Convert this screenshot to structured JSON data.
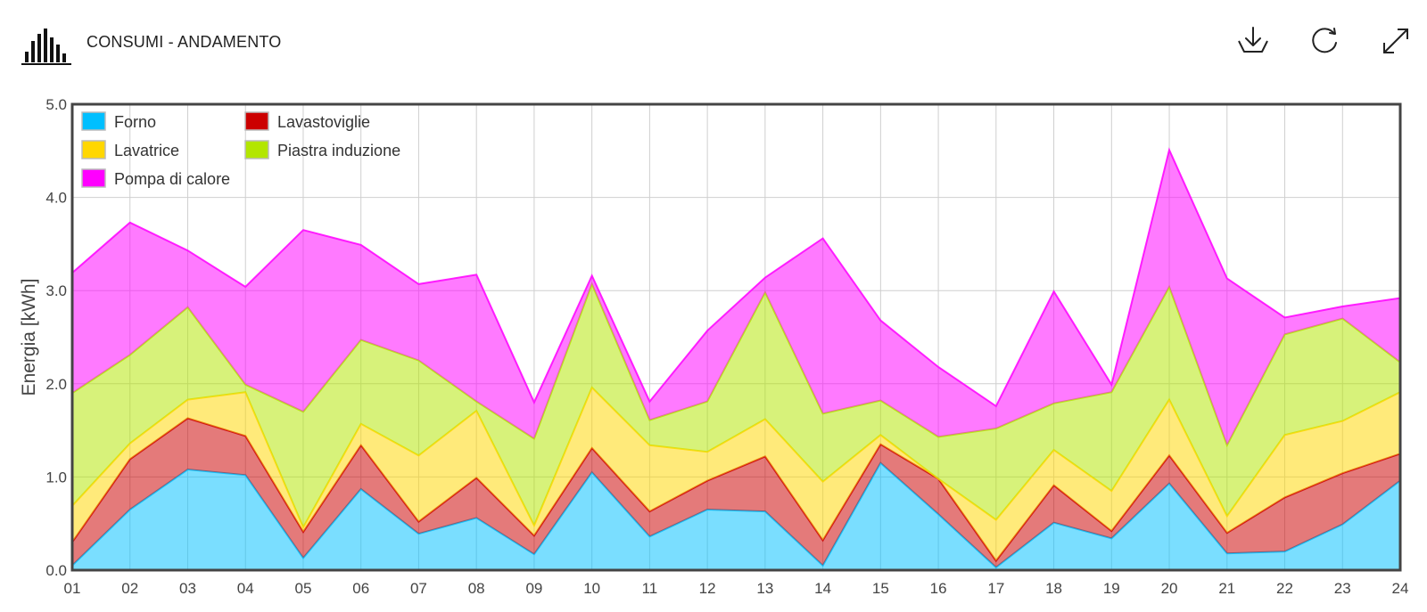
{
  "header": {
    "title": "CONSUMI - ANDAMENTO",
    "icons": {
      "chart": "bar-chart-icon",
      "download": "download-icon",
      "refresh": "refresh-icon",
      "expand": "expand-icon"
    }
  },
  "chart_data": {
    "type": "area",
    "stacked": true,
    "title": "",
    "xlabel": "",
    "ylabel": "Energia [kWh]",
    "ylim": [
      0,
      5
    ],
    "yticks": [
      "0.0",
      "1.0",
      "2.0",
      "3.0",
      "4.0",
      "5.0"
    ],
    "categories": [
      "01",
      "02",
      "03",
      "04",
      "05",
      "06",
      "07",
      "08",
      "09",
      "10",
      "11",
      "12",
      "13",
      "14",
      "15",
      "16",
      "17",
      "18",
      "19",
      "20",
      "21",
      "22",
      "23",
      "24"
    ],
    "grid": true,
    "legend_position": "top-left",
    "series": [
      {
        "name": "Forno",
        "color": "#00bfff",
        "values": [
          0.05,
          0.65,
          1.08,
          1.02,
          0.13,
          0.87,
          0.39,
          0.56,
          0.17,
          1.05,
          0.36,
          0.65,
          0.63,
          0.05,
          1.15,
          0.6,
          0.03,
          0.51,
          0.34,
          0.93,
          0.18,
          0.2,
          0.49,
          0.96
        ]
      },
      {
        "name": "Lavastoviglie",
        "color": "#cc0000",
        "values": [
          0.25,
          0.54,
          0.55,
          0.42,
          0.28,
          0.47,
          0.13,
          0.43,
          0.2,
          0.26,
          0.27,
          0.31,
          0.59,
          0.27,
          0.2,
          0.38,
          0.07,
          0.4,
          0.08,
          0.3,
          0.22,
          0.58,
          0.55,
          0.29
        ]
      },
      {
        "name": "Lavatrice",
        "color": "#ffd700",
        "values": [
          0.39,
          0.17,
          0.2,
          0.47,
          0.05,
          0.23,
          0.71,
          0.72,
          0.11,
          0.65,
          0.71,
          0.31,
          0.4,
          0.63,
          0.1,
          0.0,
          0.44,
          0.38,
          0.43,
          0.6,
          0.18,
          0.67,
          0.56,
          0.66
        ]
      },
      {
        "name": "Piastra induzione",
        "color": "#b3e600",
        "values": [
          1.21,
          0.95,
          0.99,
          0.08,
          1.24,
          0.9,
          1.02,
          0.1,
          0.93,
          1.11,
          0.27,
          0.54,
          1.36,
          0.73,
          0.37,
          0.45,
          0.98,
          0.5,
          1.06,
          1.21,
          0.76,
          1.08,
          1.1,
          0.32
        ]
      },
      {
        "name": "Pompa di calore",
        "color": "#ff00ff",
        "values": [
          1.29,
          1.42,
          0.61,
          1.05,
          1.95,
          1.02,
          0.82,
          1.36,
          0.39,
          0.09,
          0.2,
          0.76,
          0.16,
          1.88,
          0.86,
          0.75,
          0.24,
          1.2,
          0.08,
          1.47,
          1.79,
          0.18,
          0.13,
          0.69
        ]
      }
    ]
  }
}
